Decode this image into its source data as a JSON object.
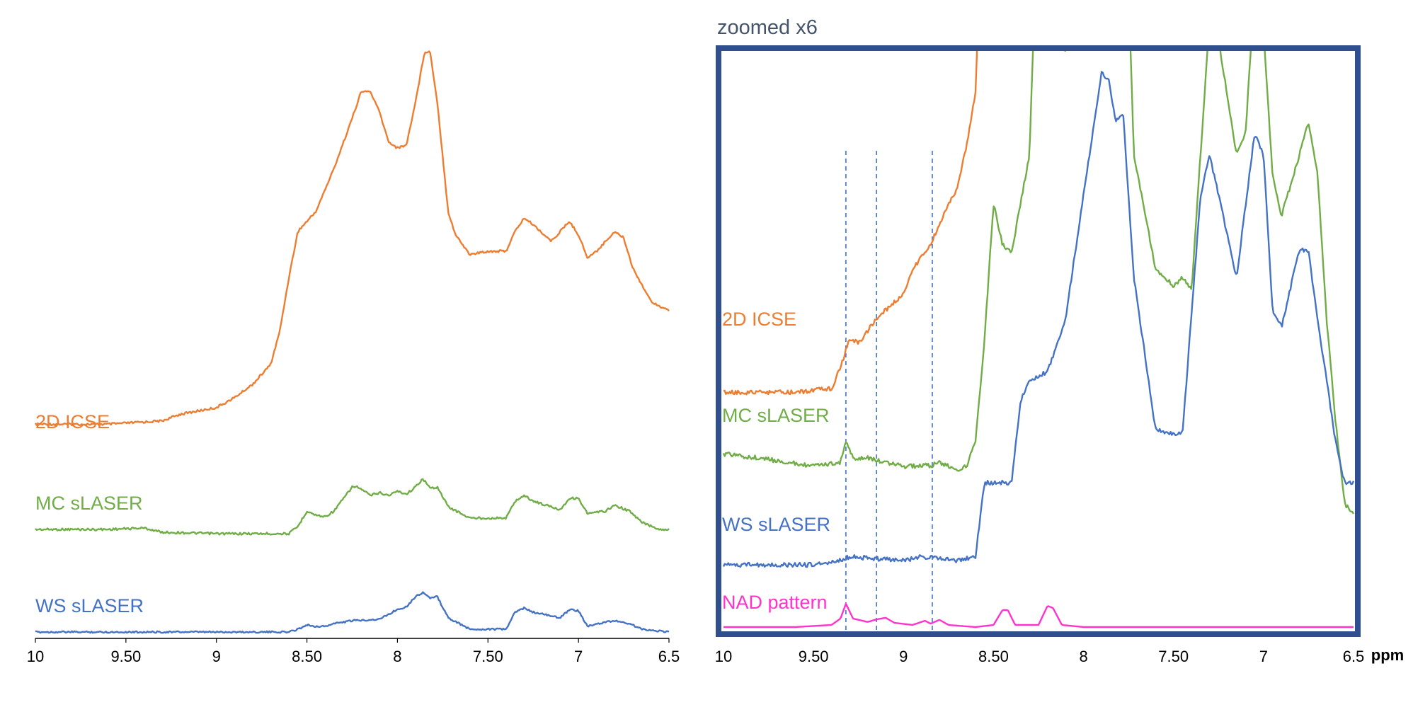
{
  "chart_data": [
    {
      "type": "line",
      "title": "",
      "xlabel": "",
      "ylabel": "",
      "x_reversed": true,
      "xlim": [
        10,
        6.5
      ],
      "x_ticks": [
        "10",
        "9.50",
        "9",
        "8.50",
        "8",
        "7.50",
        "7",
        "6.5"
      ],
      "grid": false,
      "series": [
        {
          "name": "2D ICSE",
          "color": "#ED7D31",
          "points": [
            [
              10,
              0.08
            ],
            [
              9.6,
              0.08
            ],
            [
              9.3,
              0.09
            ],
            [
              9.2,
              0.11
            ],
            [
              9.0,
              0.13
            ],
            [
              8.9,
              0.16
            ],
            [
              8.8,
              0.2
            ],
            [
              8.7,
              0.26
            ],
            [
              8.65,
              0.36
            ],
            [
              8.6,
              0.52
            ],
            [
              8.55,
              0.66
            ],
            [
              8.45,
              0.72
            ],
            [
              8.35,
              0.85
            ],
            [
              8.25,
              1.0
            ],
            [
              8.2,
              1.08
            ],
            [
              8.15,
              1.08
            ],
            [
              8.1,
              1.02
            ],
            [
              8.05,
              0.93
            ],
            [
              8.0,
              0.91
            ],
            [
              7.95,
              0.92
            ],
            [
              7.9,
              1.05
            ],
            [
              7.85,
              1.2
            ],
            [
              7.82,
              1.2
            ],
            [
              7.78,
              1.05
            ],
            [
              7.72,
              0.72
            ],
            [
              7.68,
              0.65
            ],
            [
              7.6,
              0.59
            ],
            [
              7.5,
              0.6
            ],
            [
              7.4,
              0.6
            ],
            [
              7.35,
              0.66
            ],
            [
              7.3,
              0.7
            ],
            [
              7.25,
              0.68
            ],
            [
              7.15,
              0.63
            ],
            [
              7.05,
              0.69
            ],
            [
              7.0,
              0.65
            ],
            [
              6.95,
              0.58
            ],
            [
              6.9,
              0.6
            ],
            [
              6.8,
              0.66
            ],
            [
              6.75,
              0.64
            ],
            [
              6.7,
              0.55
            ],
            [
              6.6,
              0.45
            ],
            [
              6.5,
              0.42
            ]
          ]
        },
        {
          "name": "MC sLASER",
          "color": "#70AD47",
          "points": [
            [
              10,
              0.0
            ],
            [
              9.6,
              0.0
            ],
            [
              9.4,
              0.01
            ],
            [
              9.3,
              -0.02
            ],
            [
              9.0,
              -0.03
            ],
            [
              8.6,
              -0.03
            ],
            [
              8.55,
              0.02
            ],
            [
              8.5,
              0.13
            ],
            [
              8.45,
              0.1
            ],
            [
              8.4,
              0.09
            ],
            [
              8.35,
              0.13
            ],
            [
              8.25,
              0.3
            ],
            [
              8.22,
              0.3
            ],
            [
              8.15,
              0.24
            ],
            [
              8.1,
              0.26
            ],
            [
              8.05,
              0.24
            ],
            [
              8.0,
              0.27
            ],
            [
              7.95,
              0.25
            ],
            [
              7.9,
              0.3
            ],
            [
              7.86,
              0.36
            ],
            [
              7.82,
              0.29
            ],
            [
              7.78,
              0.3
            ],
            [
              7.72,
              0.16
            ],
            [
              7.6,
              0.08
            ],
            [
              7.5,
              0.08
            ],
            [
              7.4,
              0.08
            ],
            [
              7.35,
              0.2
            ],
            [
              7.3,
              0.24
            ],
            [
              7.25,
              0.2
            ],
            [
              7.1,
              0.14
            ],
            [
              7.05,
              0.22
            ],
            [
              7.0,
              0.22
            ],
            [
              6.95,
              0.11
            ],
            [
              6.85,
              0.13
            ],
            [
              6.8,
              0.17
            ],
            [
              6.72,
              0.13
            ],
            [
              6.65,
              0.05
            ],
            [
              6.55,
              0.0
            ],
            [
              6.5,
              0.0
            ]
          ]
        },
        {
          "name": "WS sLASER",
          "color": "#4472C4",
          "points": [
            [
              10,
              0.0
            ],
            [
              9.5,
              0.0
            ],
            [
              9.0,
              0.0
            ],
            [
              8.6,
              0.0
            ],
            [
              8.55,
              0.02
            ],
            [
              8.5,
              0.05
            ],
            [
              8.45,
              0.04
            ],
            [
              8.4,
              0.04
            ],
            [
              8.35,
              0.06
            ],
            [
              8.25,
              0.08
            ],
            [
              8.1,
              0.09
            ],
            [
              8.0,
              0.16
            ],
            [
              7.95,
              0.18
            ],
            [
              7.9,
              0.25
            ],
            [
              7.86,
              0.28
            ],
            [
              7.82,
              0.24
            ],
            [
              7.78,
              0.25
            ],
            [
              7.72,
              0.1
            ],
            [
              7.6,
              0.02
            ],
            [
              7.45,
              0.02
            ],
            [
              7.4,
              0.02
            ],
            [
              7.35,
              0.14
            ],
            [
              7.3,
              0.17
            ],
            [
              7.25,
              0.14
            ],
            [
              7.1,
              0.1
            ],
            [
              7.05,
              0.16
            ],
            [
              7.0,
              0.15
            ],
            [
              6.95,
              0.04
            ],
            [
              6.85,
              0.07
            ],
            [
              6.8,
              0.08
            ],
            [
              6.72,
              0.06
            ],
            [
              6.65,
              0.02
            ],
            [
              6.5,
              0.0
            ]
          ]
        }
      ]
    },
    {
      "type": "line",
      "title": "zoomed x6",
      "xlabel": "ppm",
      "ylabel": "",
      "x_reversed": true,
      "xlim": [
        10,
        6.5
      ],
      "x_ticks": [
        "10",
        "9.50",
        "9",
        "8.50",
        "8",
        "7.50",
        "7",
        "6.5"
      ],
      "reference_lines_ppm": [
        9.32,
        9.15,
        8.84
      ],
      "grid": false,
      "series": [
        {
          "name": "2D ICSE",
          "color": "#ED7D31",
          "points": [
            [
              10,
              0.42
            ],
            [
              9.8,
              0.42
            ],
            [
              9.6,
              0.42
            ],
            [
              9.4,
              0.43
            ],
            [
              9.35,
              0.48
            ],
            [
              9.3,
              0.55
            ],
            [
              9.25,
              0.54
            ],
            [
              9.15,
              0.6
            ],
            [
              9.0,
              0.66
            ],
            [
              8.95,
              0.72
            ],
            [
              8.85,
              0.78
            ],
            [
              8.78,
              0.85
            ],
            [
              8.7,
              0.92
            ],
            [
              8.65,
              1.02
            ],
            [
              8.6,
              1.15
            ],
            [
              8.58,
              1.4
            ]
          ]
        },
        {
          "name": "MC sLASER",
          "color": "#70AD47",
          "points": [
            [
              10,
              0.27
            ],
            [
              9.8,
              0.26
            ],
            [
              9.5,
              0.24
            ],
            [
              9.35,
              0.25
            ],
            [
              9.32,
              0.3
            ],
            [
              9.28,
              0.26
            ],
            [
              9.2,
              0.26
            ],
            [
              9.0,
              0.24
            ],
            [
              8.9,
              0.24
            ],
            [
              8.88,
              0.25
            ],
            [
              8.85,
              0.24
            ],
            [
              8.8,
              0.25
            ],
            [
              8.7,
              0.23
            ],
            [
              8.65,
              0.24
            ],
            [
              8.6,
              0.3
            ],
            [
              8.55,
              0.55
            ],
            [
              8.5,
              0.88
            ],
            [
              8.45,
              0.78
            ],
            [
              8.4,
              0.76
            ],
            [
              8.3,
              1.0
            ],
            [
              8.27,
              1.4
            ],
            [
              8.2,
              1.35
            ],
            [
              8.15,
              1.3
            ],
            [
              8.1,
              1.25
            ],
            [
              8.05,
              1.3
            ],
            [
              8.0,
              1.33
            ],
            [
              7.95,
              1.4
            ],
            [
              7.75,
              1.4
            ],
            [
              7.72,
              1.0
            ],
            [
              7.6,
              0.72
            ],
            [
              7.5,
              0.68
            ],
            [
              7.45,
              0.7
            ],
            [
              7.4,
              0.67
            ],
            [
              7.35,
              1.0
            ],
            [
              7.3,
              1.33
            ],
            [
              7.25,
              1.28
            ],
            [
              7.15,
              1.0
            ],
            [
              7.1,
              1.05
            ],
            [
              7.05,
              1.4
            ],
            [
              7.0,
              1.3
            ],
            [
              6.95,
              0.95
            ],
            [
              6.9,
              0.85
            ],
            [
              6.8,
              1.0
            ],
            [
              6.75,
              1.08
            ],
            [
              6.7,
              0.95
            ],
            [
              6.65,
              0.6
            ],
            [
              6.6,
              0.35
            ],
            [
              6.55,
              0.15
            ],
            [
              6.5,
              0.12
            ]
          ]
        },
        {
          "name": "WS sLASER",
          "color": "#4472C4",
          "points": [
            [
              10,
              0.0
            ],
            [
              9.8,
              0.0
            ],
            [
              9.5,
              0.0
            ],
            [
              9.35,
              0.01
            ],
            [
              9.3,
              0.02
            ],
            [
              9.0,
              0.01
            ],
            [
              8.9,
              0.02
            ],
            [
              8.7,
              0.01
            ],
            [
              8.6,
              0.02
            ],
            [
              8.55,
              0.2
            ],
            [
              8.5,
              0.2
            ],
            [
              8.4,
              0.2
            ],
            [
              8.35,
              0.4
            ],
            [
              8.3,
              0.45
            ],
            [
              8.2,
              0.47
            ],
            [
              8.1,
              0.6
            ],
            [
              8.05,
              0.75
            ],
            [
              8.0,
              0.9
            ],
            [
              7.95,
              1.05
            ],
            [
              7.9,
              1.2
            ],
            [
              7.86,
              1.18
            ],
            [
              7.82,
              1.08
            ],
            [
              7.78,
              1.1
            ],
            [
              7.72,
              0.7
            ],
            [
              7.6,
              0.33
            ],
            [
              7.5,
              0.32
            ],
            [
              7.45,
              0.32
            ],
            [
              7.35,
              0.9
            ],
            [
              7.3,
              1.0
            ],
            [
              7.25,
              0.9
            ],
            [
              7.15,
              0.7
            ],
            [
              7.05,
              1.05
            ],
            [
              7.0,
              1.0
            ],
            [
              6.95,
              0.62
            ],
            [
              6.9,
              0.58
            ],
            [
              6.8,
              0.77
            ],
            [
              6.75,
              0.76
            ],
            [
              6.7,
              0.6
            ],
            [
              6.6,
              0.3
            ],
            [
              6.55,
              0.2
            ],
            [
              6.5,
              0.2
            ]
          ]
        },
        {
          "name": "NAD pattern",
          "color": "#FF33CC",
          "points": [
            [
              10,
              0.0
            ],
            [
              9.6,
              0.0
            ],
            [
              9.4,
              0.005
            ],
            [
              9.35,
              0.02
            ],
            [
              9.32,
              0.055
            ],
            [
              9.28,
              0.02
            ],
            [
              9.2,
              0.012
            ],
            [
              9.15,
              0.018
            ],
            [
              9.1,
              0.022
            ],
            [
              9.05,
              0.01
            ],
            [
              8.95,
              0.005
            ],
            [
              8.88,
              0.015
            ],
            [
              8.85,
              0.008
            ],
            [
              8.8,
              0.017
            ],
            [
              8.75,
              0.005
            ],
            [
              8.6,
              0.0
            ],
            [
              8.5,
              0.005
            ],
            [
              8.45,
              0.04
            ],
            [
              8.42,
              0.04
            ],
            [
              8.38,
              0.005
            ],
            [
              8.25,
              0.005
            ],
            [
              8.2,
              0.05
            ],
            [
              8.17,
              0.045
            ],
            [
              8.12,
              0.005
            ],
            [
              8.0,
              0.0
            ],
            [
              7.5,
              0.0
            ],
            [
              7.0,
              0.0
            ],
            [
              6.5,
              0.0
            ]
          ]
        }
      ]
    }
  ]
}
